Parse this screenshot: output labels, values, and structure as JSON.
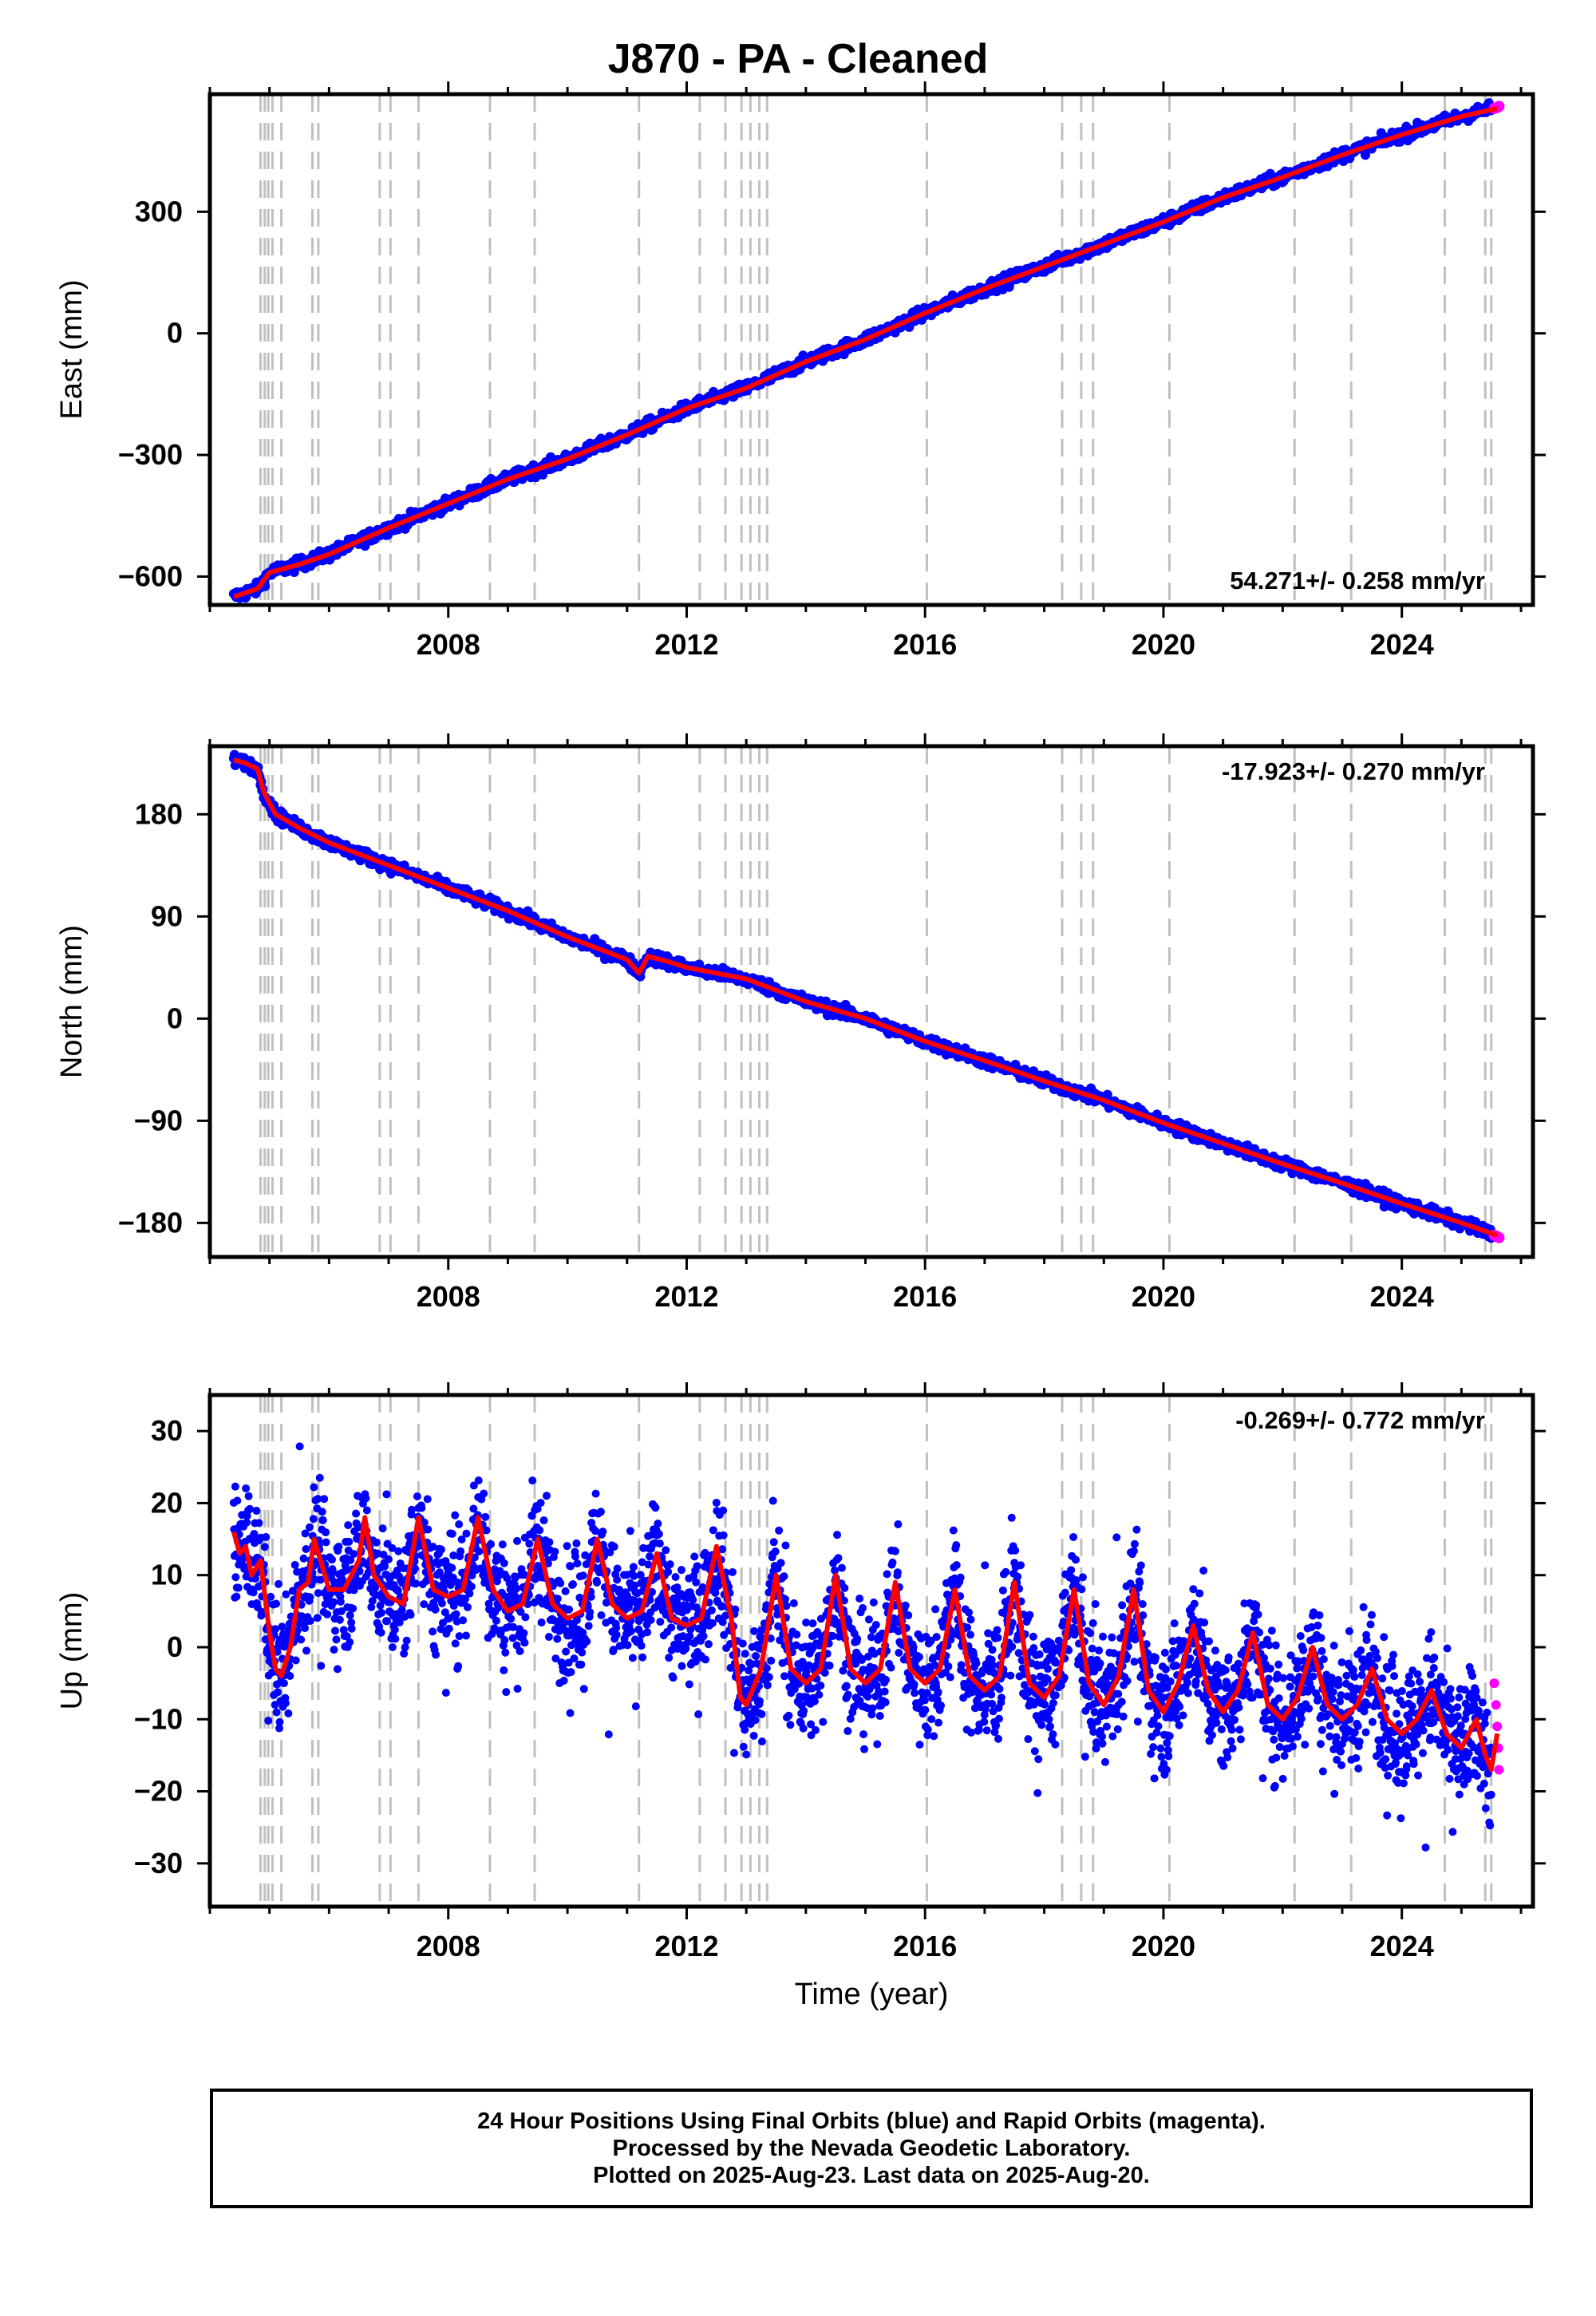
{
  "title": "J870  - PA - Cleaned",
  "footer": {
    "line1": "24 Hour Positions Using Final Orbits (blue) and Rapid Orbits (magenta).",
    "line2": "Processed by the Nevada Geodetic Laboratory.",
    "line3": "Plotted on 2025-Aug-23. Last data on 2025-Aug-20."
  },
  "colors": {
    "final_orbits": "#0000ff",
    "rapid_orbits": "#ff00ff",
    "model": "#ff0000",
    "event_lines": "#c0c0c0"
  },
  "chart_data": [
    {
      "type": "scatter",
      "panel": "east",
      "ylabel": "East (mm)",
      "xlabel": "",
      "annotation": "54.271+/- 0.258 mm/yr",
      "annotation_position": "bottom-right",
      "xlim": [
        2004.0,
        2026.2
      ],
      "ylim": [
        -670,
        590
      ],
      "xticks": [
        2008,
        2012,
        2016,
        2020,
        2024
      ],
      "yticks": [
        -600,
        -300,
        0,
        300
      ],
      "ytick_labels": [
        "−600",
        "−300",
        "0",
        "300"
      ],
      "grid": false,
      "vertical_event_lines": [
        2004.85,
        2004.92,
        2004.98,
        2005.05,
        2005.2,
        2005.72,
        2005.82,
        2006.85,
        2007.03,
        2007.5,
        2008.7,
        2009.45,
        2011.2,
        2012.22,
        2012.65,
        2012.92,
        2013.07,
        2013.22,
        2013.35,
        2016.03,
        2018.3,
        2018.62,
        2018.82,
        2020.1,
        2022.2,
        2023.15,
        2024.72,
        2025.4,
        2025.5
      ],
      "series": [
        {
          "name": "Final Orbits",
          "color": "#0000ff",
          "marker": "dot",
          "x": [
            2004.4,
            2004.8,
            2005.0,
            2005.5,
            2006.0,
            2007.0,
            2008.0,
            2009.0,
            2010.0,
            2011.0,
            2012.0,
            2013.0,
            2014.0,
            2015.0,
            2016.0,
            2017.0,
            2018.0,
            2019.0,
            2020.0,
            2021.0,
            2022.0,
            2023.0,
            2024.0,
            2025.0,
            2025.5
          ],
          "y": [
            -650,
            -630,
            -590,
            -570,
            -545,
            -480,
            -420,
            -360,
            -310,
            -250,
            -185,
            -135,
            -70,
            -15,
            50,
            110,
            165,
            220,
            275,
            335,
            385,
            440,
            490,
            535,
            555
          ]
        },
        {
          "name": "Rapid Orbits",
          "color": "#ff00ff",
          "marker": "dot",
          "x": [
            2025.55,
            2025.6,
            2025.63
          ],
          "y": [
            555,
            557,
            560
          ]
        },
        {
          "name": "Model",
          "color": "#ff0000",
          "marker": "line",
          "x": [
            2004.4,
            2004.8,
            2005.0,
            2005.5,
            2006.0,
            2007.0,
            2008.0,
            2009.0,
            2010.0,
            2011.0,
            2012.0,
            2013.0,
            2014.0,
            2015.0,
            2016.0,
            2017.0,
            2018.0,
            2019.0,
            2020.0,
            2021.0,
            2022.0,
            2023.0,
            2024.0,
            2025.0,
            2025.6
          ],
          "y": [
            -650,
            -630,
            -590,
            -570,
            -545,
            -480,
            -420,
            -360,
            -310,
            -250,
            -185,
            -135,
            -70,
            -15,
            50,
            110,
            165,
            220,
            275,
            335,
            385,
            440,
            490,
            535,
            555
          ]
        }
      ]
    },
    {
      "type": "scatter",
      "panel": "north",
      "ylabel": "North (mm)",
      "xlabel": "",
      "annotation": "-17.923+/- 0.270 mm/yr",
      "annotation_position": "top-right",
      "xlim": [
        2004.0,
        2026.2
      ],
      "ylim": [
        -210,
        240
      ],
      "xticks": [
        2008,
        2012,
        2016,
        2020,
        2024
      ],
      "yticks": [
        -180,
        -90,
        0,
        90,
        180
      ],
      "ytick_labels": [
        "−180",
        "−90",
        "0",
        "90",
        "180"
      ],
      "grid": false,
      "vertical_event_lines": [
        2004.85,
        2004.92,
        2004.98,
        2005.05,
        2005.2,
        2005.72,
        2005.82,
        2006.85,
        2007.03,
        2007.5,
        2008.7,
        2009.45,
        2011.2,
        2012.22,
        2012.65,
        2012.92,
        2013.07,
        2013.22,
        2013.35,
        2016.03,
        2018.3,
        2018.62,
        2018.82,
        2020.1,
        2022.2,
        2023.15,
        2024.72,
        2025.4,
        2025.5
      ],
      "series": [
        {
          "name": "Final Orbits",
          "color": "#0000ff",
          "marker": "dot",
          "x": [
            2004.4,
            2004.6,
            2004.8,
            2004.9,
            2005.1,
            2005.5,
            2006.0,
            2007.0,
            2008.0,
            2009.0,
            2010.0,
            2011.0,
            2011.2,
            2011.35,
            2011.7,
            2012.0,
            2013.0,
            2014.0,
            2015.0,
            2016.0,
            2017.0,
            2018.0,
            2019.0,
            2020.0,
            2021.0,
            2022.0,
            2023.0,
            2024.0,
            2025.0,
            2025.5
          ],
          "y": [
            228,
            225,
            220,
            200,
            180,
            168,
            155,
            135,
            115,
            95,
            72,
            52,
            40,
            55,
            50,
            45,
            35,
            15,
            0,
            -20,
            -37,
            -55,
            -72,
            -92,
            -110,
            -128,
            -145,
            -163,
            -180,
            -190
          ]
        },
        {
          "name": "Rapid Orbits",
          "color": "#ff00ff",
          "marker": "dot",
          "x": [
            2025.55,
            2025.6,
            2025.63
          ],
          "y": [
            -191,
            -192,
            -193
          ]
        },
        {
          "name": "Model",
          "color": "#ff0000",
          "marker": "line",
          "x": [
            2004.4,
            2004.6,
            2004.8,
            2004.9,
            2005.1,
            2005.5,
            2006.0,
            2007.0,
            2008.0,
            2009.0,
            2010.0,
            2011.0,
            2011.2,
            2011.35,
            2011.7,
            2012.0,
            2013.0,
            2014.0,
            2015.0,
            2016.0,
            2017.0,
            2018.0,
            2019.0,
            2020.0,
            2021.0,
            2022.0,
            2023.0,
            2024.0,
            2025.0,
            2025.6
          ],
          "y": [
            228,
            225,
            220,
            200,
            180,
            168,
            155,
            135,
            115,
            95,
            72,
            52,
            40,
            55,
            50,
            45,
            35,
            15,
            0,
            -20,
            -37,
            -55,
            -72,
            -92,
            -110,
            -128,
            -145,
            -163,
            -180,
            -191
          ]
        }
      ]
    },
    {
      "type": "scatter",
      "panel": "up",
      "ylabel": "Up (mm)",
      "xlabel": "Time (year)",
      "annotation": "-0.269+/- 0.772 mm/yr",
      "annotation_position": "top-right",
      "xlim": [
        2004.0,
        2026.2
      ],
      "ylim": [
        -36,
        35
      ],
      "xticks": [
        2008,
        2012,
        2016,
        2020,
        2024
      ],
      "yticks": [
        -30,
        -20,
        -10,
        0,
        10,
        20,
        30
      ],
      "ytick_labels": [
        "−30",
        "−20",
        "−10",
        "0",
        "10",
        "20",
        "30"
      ],
      "grid": false,
      "vertical_event_lines": [
        2004.85,
        2004.92,
        2004.98,
        2005.05,
        2005.2,
        2005.72,
        2005.82,
        2006.85,
        2007.03,
        2007.5,
        2008.7,
        2009.45,
        2011.2,
        2012.22,
        2012.65,
        2012.92,
        2013.07,
        2013.22,
        2013.35,
        2016.03,
        2018.3,
        2018.62,
        2018.82,
        2020.1,
        2022.2,
        2023.15,
        2024.72,
        2025.4,
        2025.5
      ],
      "series": [
        {
          "name": "Final Orbits",
          "color": "#0000ff",
          "marker": "dot",
          "x": [
            2004.4,
            2004.5,
            2004.6,
            2004.7,
            2004.85,
            2005.0,
            2005.1,
            2005.2,
            2005.35,
            2005.5,
            2005.65,
            2005.75,
            2006.0,
            2006.25,
            2006.5,
            2006.6,
            2006.75,
            2007.0,
            2007.25,
            2007.5,
            2007.75,
            2008.0,
            2008.25,
            2008.5,
            2008.75,
            2009.0,
            2009.25,
            2009.5,
            2009.75,
            2010.0,
            2010.25,
            2010.5,
            2010.75,
            2011.0,
            2011.25,
            2011.5,
            2011.75,
            2012.0,
            2012.25,
            2012.5,
            2012.75,
            2012.9,
            2013.0,
            2013.25,
            2013.5,
            2013.75,
            2014.0,
            2014.25,
            2014.5,
            2014.75,
            2015.0,
            2015.25,
            2015.5,
            2015.75,
            2016.0,
            2016.25,
            2016.5,
            2016.75,
            2017.0,
            2017.25,
            2017.5,
            2017.75,
            2018.0,
            2018.25,
            2018.5,
            2018.75,
            2019.0,
            2019.25,
            2019.5,
            2019.75,
            2020.0,
            2020.25,
            2020.5,
            2020.75,
            2021.0,
            2021.25,
            2021.5,
            2021.75,
            2022.0,
            2022.25,
            2022.5,
            2022.75,
            2023.0,
            2023.25,
            2023.5,
            2023.75,
            2024.0,
            2024.25,
            2024.5,
            2024.75,
            2025.0,
            2025.25,
            2025.4,
            2025.5
          ],
          "y": [
            16,
            13,
            14,
            10,
            12,
            2,
            -3,
            -4,
            0,
            8,
            9,
            15,
            8,
            8,
            12,
            18,
            10,
            7,
            6,
            18,
            8,
            7,
            8,
            18,
            8,
            5,
            6,
            15,
            6,
            4,
            5,
            15,
            6,
            4,
            5,
            13,
            4,
            3,
            4,
            14,
            4,
            -7,
            -8,
            -3,
            10,
            -3,
            -5,
            -3,
            10,
            -3,
            -5,
            -3,
            9,
            -3,
            -5,
            -3,
            8,
            -4,
            -6,
            -4,
            9,
            -5,
            -7,
            -4,
            8,
            -5,
            -8,
            -4,
            8,
            -6,
            -9,
            -5,
            3,
            -6,
            -9,
            -6,
            2,
            -8,
            -10,
            -7,
            0,
            -8,
            -10,
            -8,
            -3,
            -10,
            -12,
            -10,
            -6,
            -12,
            -14,
            -10,
            -15,
            -17
          ]
        },
        {
          "name": "Rapid Orbits",
          "color": "#ff00ff",
          "marker": "dot",
          "x": [
            2025.55,
            2025.58,
            2025.6,
            2025.62,
            2025.63
          ],
          "y": [
            -5,
            -8,
            -11,
            -14,
            -17
          ]
        },
        {
          "name": "Model",
          "color": "#ff0000",
          "marker": "line",
          "x": [
            2004.4,
            2004.5,
            2004.6,
            2004.7,
            2004.85,
            2005.0,
            2005.1,
            2005.2,
            2005.35,
            2005.5,
            2005.65,
            2005.75,
            2006.0,
            2006.25,
            2006.5,
            2006.6,
            2006.75,
            2007.0,
            2007.25,
            2007.5,
            2007.75,
            2008.0,
            2008.25,
            2008.5,
            2008.75,
            2009.0,
            2009.25,
            2009.5,
            2009.75,
            2010.0,
            2010.25,
            2010.5,
            2010.75,
            2011.0,
            2011.25,
            2011.5,
            2011.75,
            2012.0,
            2012.25,
            2012.5,
            2012.75,
            2012.9,
            2013.0,
            2013.25,
            2013.5,
            2013.75,
            2014.0,
            2014.25,
            2014.5,
            2014.75,
            2015.0,
            2015.25,
            2015.5,
            2015.75,
            2016.0,
            2016.25,
            2016.5,
            2016.75,
            2017.0,
            2017.25,
            2017.5,
            2017.75,
            2018.0,
            2018.25,
            2018.5,
            2018.75,
            2019.0,
            2019.25,
            2019.5,
            2019.75,
            2020.0,
            2020.25,
            2020.5,
            2020.75,
            2021.0,
            2021.25,
            2021.5,
            2021.75,
            2022.0,
            2022.25,
            2022.5,
            2022.75,
            2023.0,
            2023.25,
            2023.5,
            2023.75,
            2024.0,
            2024.25,
            2024.5,
            2024.75,
            2025.0,
            2025.25,
            2025.4,
            2025.5,
            2025.6
          ],
          "y": [
            16,
            13,
            14,
            10,
            12,
            2,
            -3,
            -4,
            0,
            8,
            9,
            15,
            8,
            8,
            12,
            18,
            10,
            7,
            6,
            18,
            8,
            7,
            8,
            18,
            8,
            5,
            6,
            15,
            6,
            4,
            5,
            15,
            6,
            4,
            5,
            13,
            4,
            3,
            4,
            14,
            4,
            -7,
            -8,
            -3,
            10,
            -3,
            -5,
            -3,
            10,
            -3,
            -5,
            -3,
            9,
            -3,
            -5,
            -3,
            8,
            -4,
            -6,
            -4,
            9,
            -5,
            -7,
            -4,
            8,
            -5,
            -8,
            -4,
            8,
            -6,
            -9,
            -5,
            3,
            -6,
            -9,
            -6,
            2,
            -8,
            -10,
            -7,
            0,
            -8,
            -10,
            -8,
            -3,
            -10,
            -12,
            -10,
            -6,
            -12,
            -14,
            -10,
            -15,
            -17,
            -12
          ]
        }
      ]
    }
  ]
}
